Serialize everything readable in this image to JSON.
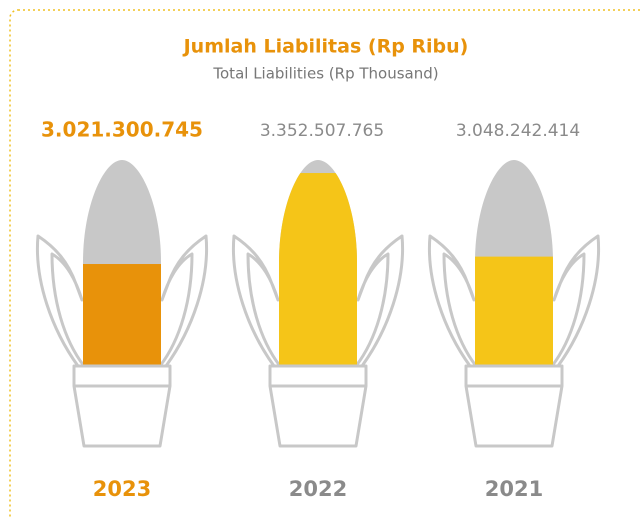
{
  "chart_data": {
    "type": "pictorial",
    "title": "Jumlah Liabilitas (Rp Ribu)",
    "subtitle": "Total Liabilities (Rp Thousand)",
    "categories": [
      "2023",
      "2022",
      "2021"
    ],
    "values": [
      3021300745,
      3352507765,
      3048242414
    ],
    "value_labels": [
      "3.021.300.745",
      "3.352.507.765",
      "3.048.242.414"
    ],
    "colors": [
      "#e8920a",
      "#f5c518",
      "#f5c518"
    ],
    "label_colors": [
      "#e8920a",
      "#8a8a8a",
      "#8a8a8a"
    ],
    "ylim": [
      2650000000,
      3400000000
    ]
  }
}
